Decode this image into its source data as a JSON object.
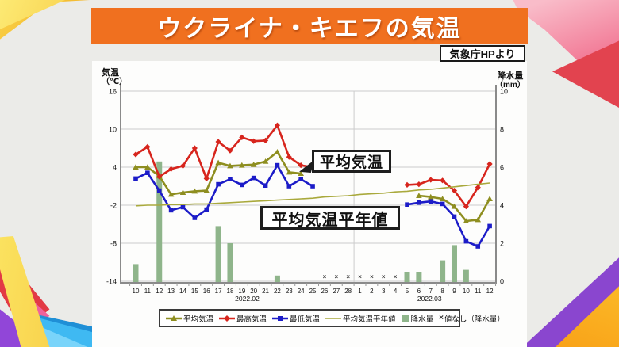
{
  "header": {
    "title": "ウクライナ・キエフの気温",
    "source": "気象庁HPより"
  },
  "annotations": {
    "avg_label": "平均気温",
    "normal_label": "平均気温平年値"
  },
  "colors": {
    "banner_orange": "#f0701f",
    "max_temp_red": "#d7251d",
    "avg_temp_olive": "#8e8e20",
    "min_temp_blue": "#1c1cc8",
    "normal_line_olive": "#a9a93c",
    "precip_bar_green": "#8fb58b",
    "grid_gray": "#cccccc",
    "axis_gray": "#8a8a8a"
  },
  "chart_data": {
    "type": "line+bar",
    "x_labels": [
      "10",
      "11",
      "12",
      "13",
      "14",
      "15",
      "16",
      "17",
      "18",
      "19",
      "20",
      "21",
      "22",
      "23",
      "24",
      "25",
      "26",
      "27",
      "28",
      "1",
      "2",
      "3",
      "4",
      "5",
      "6",
      "7",
      "8",
      "9",
      "10",
      "11",
      "12"
    ],
    "month_labels": [
      {
        "label": "2022.02",
        "at": 9.45
      },
      {
        "label": "2022.03",
        "at": 24.9
      }
    ],
    "month_boundary_index": 18.5,
    "left_axis": {
      "title": "気温",
      "unit": "（℃）",
      "max": 16,
      "min": -14,
      "ticks": [
        16,
        10,
        4,
        -2,
        -8,
        -14
      ]
    },
    "right_axis": {
      "title": "降水量",
      "unit": "（mm）",
      "max": 10,
      "min": 0,
      "ticks": [
        10,
        8,
        6,
        4,
        2,
        0
      ]
    },
    "series": [
      {
        "name": "平均気温",
        "color": "#8e8e20",
        "marker": "triangle",
        "width": 2.6,
        "values": [
          4.0,
          4.0,
          2.6,
          -0.3,
          0.0,
          0.2,
          0.3,
          4.7,
          4.2,
          4.3,
          4.4,
          4.9,
          6.4,
          3.2,
          3.0,
          null,
          null,
          null,
          null,
          null,
          null,
          null,
          null,
          null,
          -0.5,
          -0.7,
          -1.0,
          -2.2,
          -4.5,
          -4.3,
          -1.0
        ]
      },
      {
        "name": "最高気温",
        "color": "#d7251d",
        "marker": "diamond",
        "width": 2.6,
        "values": [
          6.0,
          7.2,
          2.5,
          3.7,
          4.2,
          7.0,
          2.2,
          8.0,
          6.6,
          8.7,
          8.1,
          8.2,
          10.6,
          5.6,
          4.3,
          4.0,
          null,
          null,
          null,
          null,
          null,
          null,
          null,
          1.2,
          1.3,
          2.0,
          1.9,
          0.3,
          -2.2,
          0.8,
          4.5
        ]
      },
      {
        "name": "最低気温",
        "color": "#1c1cc8",
        "marker": "square",
        "width": 2.6,
        "values": [
          2.2,
          3.1,
          0.3,
          -2.8,
          -2.3,
          -4.0,
          -2.7,
          1.3,
          2.1,
          1.2,
          2.3,
          1.1,
          4.3,
          1.0,
          2.1,
          1.0,
          null,
          null,
          null,
          null,
          null,
          null,
          null,
          -1.9,
          -1.6,
          -1.4,
          -1.8,
          -3.8,
          -7.7,
          -8.5,
          -5.3
        ]
      },
      {
        "name": "平均気温平年値",
        "color": "#a9a93c",
        "marker": "none",
        "width": 1.6,
        "values": [
          -2.1,
          -2.0,
          -2.0,
          -1.9,
          -1.9,
          -1.8,
          -1.8,
          -1.7,
          -1.6,
          -1.5,
          -1.4,
          -1.3,
          -1.2,
          -1.1,
          -1.0,
          -0.9,
          -0.7,
          -0.6,
          -0.5,
          -0.3,
          -0.2,
          -0.1,
          0.1,
          0.2,
          0.4,
          0.5,
          0.7,
          0.9,
          1.1,
          1.3,
          1.5
        ]
      }
    ],
    "precipitation": {
      "name": "降水量",
      "color": "#8fb58b",
      "no_data_symbol": "×",
      "values": [
        0.9,
        0,
        6.3,
        0,
        0,
        0,
        0,
        2.9,
        2.0,
        0,
        0,
        0,
        0.3,
        0,
        0,
        0,
        null,
        null,
        null,
        null,
        null,
        null,
        null,
        0.5,
        0.5,
        0,
        1.1,
        1.9,
        0.6,
        0,
        0
      ]
    }
  },
  "legend": {
    "items": [
      {
        "label": "平均気温",
        "swatch": "line-triangle",
        "color": "#8e8e20"
      },
      {
        "label": "最高気温",
        "swatch": "line-diamond",
        "color": "#d7251d"
      },
      {
        "label": "最低気温",
        "swatch": "line-square",
        "color": "#1c1cc8"
      },
      {
        "label": "平均気温平年値",
        "swatch": "line",
        "color": "#a9a93c"
      },
      {
        "label": "降水量",
        "swatch": "bar",
        "color": "#8fb58b"
      },
      {
        "label": "値なし（降水量）",
        "swatch": "nodata",
        "color": "#444444"
      }
    ]
  }
}
